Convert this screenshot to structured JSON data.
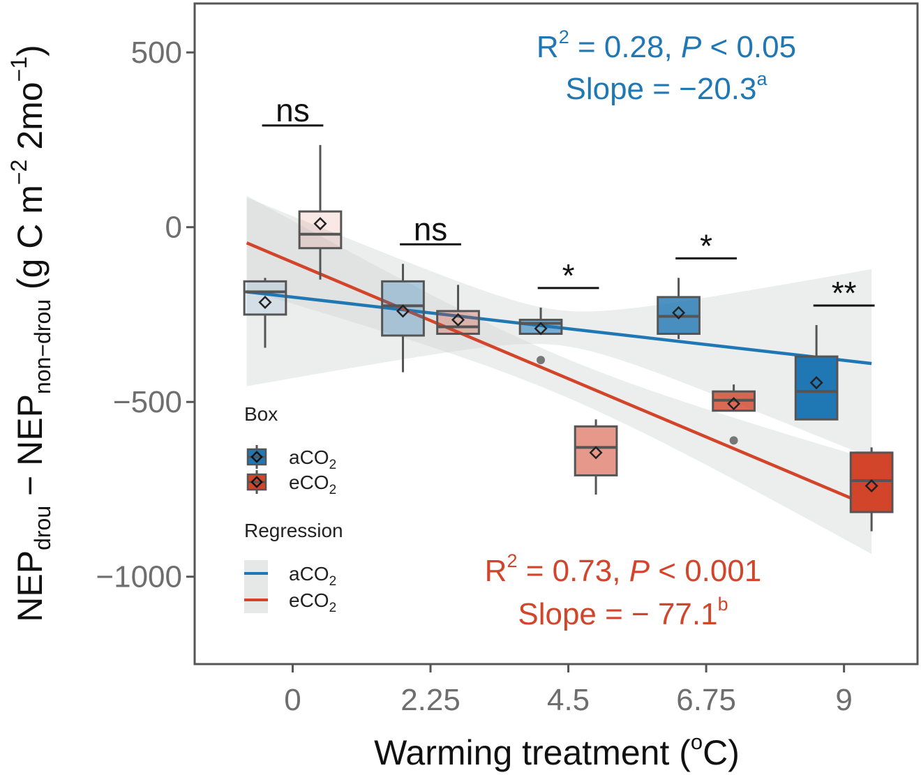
{
  "chart_data": {
    "type": "box",
    "xlabel": "Warming treatment (",
    "xlabel_sup": "o",
    "xlabel_end": "C)",
    "ylabel_main": "NEP",
    "ylabel_sub1": "drou",
    "ylabel_minus": " − NEP",
    "ylabel_sub2": "non−drou",
    "ylabel_unit": " (g C m",
    "ylabel_sup1": "−2",
    "ylabel_unit2": " 2mo",
    "ylabel_sup2": "−1",
    "ylabel_end": ")",
    "ylim": [
      -1250,
      640
    ],
    "xlim": [
      -1.6,
      10.2
    ],
    "yticks": [
      -1000,
      -500,
      0,
      500
    ],
    "ytick_labels": [
      "−1000",
      "−500",
      "0",
      "500"
    ],
    "xticks": [
      0,
      2.25,
      4.5,
      6.75,
      9
    ],
    "xtick_labels": [
      "0",
      "2.25",
      "4.5",
      "6.75",
      "9"
    ],
    "colors": {
      "aCO2": "#1f77b4",
      "eCO2": "#d2452a"
    },
    "boxes": {
      "aCO2": [
        {
          "x": 0,
          "whisker_low": -345,
          "q1": -250,
          "median": -185,
          "q3": -155,
          "whisker_high": -145,
          "mean": -215,
          "outliers": []
        },
        {
          "x": 2.25,
          "whisker_low": -415,
          "q1": -310,
          "median": -225,
          "q3": -155,
          "whisker_high": -105,
          "mean": -240,
          "outliers": []
        },
        {
          "x": 4.5,
          "whisker_low": -305,
          "q1": -305,
          "median": -275,
          "q3": -265,
          "whisker_high": -230,
          "mean": -290,
          "outliers": [
            -380
          ]
        },
        {
          "x": 6.75,
          "whisker_low": -320,
          "q1": -305,
          "median": -255,
          "q3": -200,
          "whisker_high": -145,
          "mean": -245,
          "outliers": []
        },
        {
          "x": 9,
          "whisker_low": -550,
          "q1": -550,
          "median": -470,
          "q3": -370,
          "whisker_high": -280,
          "mean": -445,
          "outliers": []
        }
      ],
      "eCO2": [
        {
          "x": 0,
          "whisker_low": -150,
          "q1": -60,
          "median": -20,
          "q3": 45,
          "whisker_high": 235,
          "mean": 10,
          "outliers": []
        },
        {
          "x": 2.25,
          "whisker_low": -305,
          "q1": -305,
          "median": -285,
          "q3": -240,
          "whisker_high": -165,
          "mean": -265,
          "outliers": []
        },
        {
          "x": 4.5,
          "whisker_low": -765,
          "q1": -710,
          "median": -630,
          "q3": -570,
          "whisker_high": -550,
          "mean": -645,
          "outliers": []
        },
        {
          "x": 6.75,
          "whisker_low": -525,
          "q1": -525,
          "median": -495,
          "q3": -470,
          "whisker_high": -450,
          "mean": -505,
          "outliers": [
            -610
          ]
        },
        {
          "x": 9,
          "whisker_low": -870,
          "q1": -815,
          "median": -725,
          "q3": -645,
          "whisker_high": -630,
          "mean": -740,
          "outliers": []
        }
      ]
    },
    "regression": {
      "aCO2": {
        "x_start": -0.75,
        "x_end": 9.45,
        "y_start": -185,
        "y_end": -390,
        "ci_halfwidth_ends": 270,
        "ci_halfwidth_mid": 50
      },
      "eCO2": {
        "x_start": -0.75,
        "x_end": 9.45,
        "y_start": -45,
        "y_end": -800,
        "ci_halfwidth_ends": 135,
        "ci_halfwidth_mid": 55
      }
    },
    "significance": [
      {
        "x": 0,
        "label": "ns"
      },
      {
        "x": 2.25,
        "label": "ns"
      },
      {
        "x": 4.5,
        "label": "*"
      },
      {
        "x": 6.75,
        "label": "*"
      },
      {
        "x": 9,
        "label": "**"
      }
    ],
    "stats": {
      "aCO2": {
        "r2_label": "R",
        "r2_sup": "2",
        "r2_rest": " = 0.28,  ",
        "p_italic": "P",
        "p_rest": " < 0.05",
        "slope_label": "Slope = −20.3",
        "slope_sup": "a"
      },
      "eCO2": {
        "r2_label": "R",
        "r2_sup": "2",
        "r2_rest": " = 0.73,  ",
        "p_italic": "P",
        "p_rest": " < 0.001",
        "slope_label": "Slope = − 77.1",
        "slope_sup": "b"
      }
    },
    "legend": {
      "placement": "center-left",
      "box_title": "Box",
      "regression_title": "Regression",
      "items": [
        {
          "key": "aCO2",
          "main": "aCO",
          "sub": "2"
        },
        {
          "key": "eCO2",
          "main": "eCO",
          "sub": "2"
        }
      ]
    }
  }
}
